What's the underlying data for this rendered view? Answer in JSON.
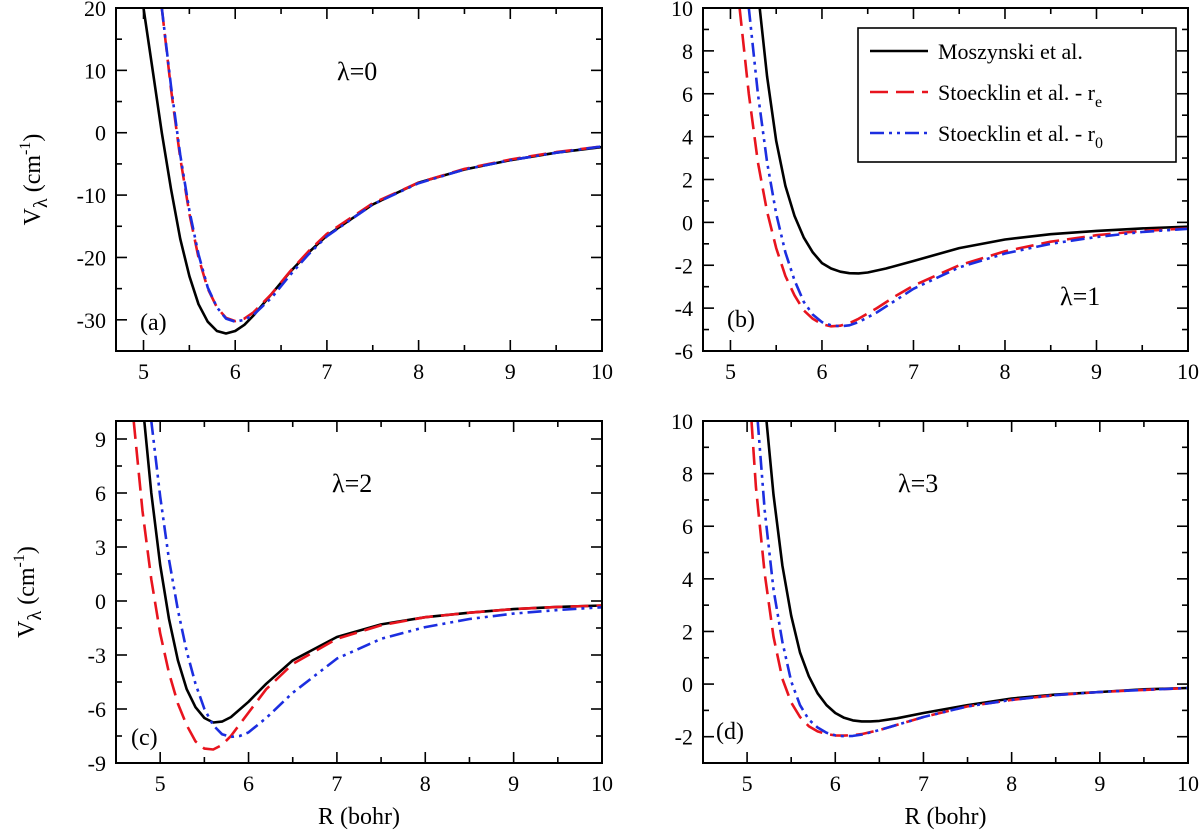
{
  "colors": {
    "moszynski": "#000000",
    "stoecklin_re": "#e8141e",
    "stoecklin_r0": "#1c2ee0"
  },
  "axis_text": {
    "ylabel_main": "V",
    "ylabel_sub": "λ",
    "ylabel_unit": "(cm",
    "ylabel_exp": "-1",
    "ylabel_close": ")",
    "xlabel": "R (bohr)"
  },
  "legend": {
    "placement": "top-right of panel (b)",
    "entries": [
      {
        "key": "moszynski",
        "label": "Moszynski et al.",
        "sub": ""
      },
      {
        "key": "stoecklin_re",
        "label": "Stoecklin et al. - r",
        "sub": "e"
      },
      {
        "key": "stoecklin_r0",
        "label": "Stoecklin et al. - r",
        "sub": "0"
      }
    ]
  },
  "chart_data": [
    {
      "type": "line",
      "panel_label": "(a)",
      "lambda_label": "λ=0",
      "xlim": [
        4.7,
        10
      ],
      "ylim": [
        -35,
        20
      ],
      "xticks": [
        5,
        6,
        7,
        8,
        9,
        10
      ],
      "yticks": [
        -30,
        -20,
        -10,
        0,
        10,
        20
      ],
      "show_xlabel": false,
      "show_ylabel": true,
      "series": [
        {
          "key": "moszynski",
          "x": [
            5.0,
            5.1,
            5.2,
            5.3,
            5.4,
            5.5,
            5.6,
            5.7,
            5.8,
            5.9,
            6.0,
            6.1,
            6.2,
            6.4,
            6.6,
            6.8,
            7.0,
            7.5,
            8.0,
            8.5,
            9.0,
            9.5,
            10.0
          ],
          "y": [
            20,
            10,
            0,
            -9,
            -17,
            -23,
            -27.5,
            -30.3,
            -31.8,
            -32.2,
            -31.8,
            -30.8,
            -29.3,
            -25.8,
            -22.3,
            -19.2,
            -16.5,
            -11.5,
            -8.0,
            -5.9,
            -4.4,
            -3.2,
            -2.3
          ]
        },
        {
          "key": "stoecklin_re",
          "x": [
            5.2,
            5.3,
            5.4,
            5.5,
            5.6,
            5.7,
            5.8,
            5.9,
            6.0,
            6.1,
            6.2,
            6.4,
            6.6,
            6.8,
            7.0,
            7.5,
            8.0,
            8.5,
            9.0,
            9.5,
            10.0
          ],
          "y": [
            20,
            7,
            -4,
            -13,
            -20,
            -25,
            -28,
            -29.7,
            -30.2,
            -29.8,
            -28.8,
            -25.8,
            -22.2,
            -19.0,
            -16.2,
            -11.3,
            -8.0,
            -5.8,
            -4.3,
            -3.1,
            -2.2
          ]
        },
        {
          "key": "stoecklin_r0",
          "x": [
            5.2,
            5.3,
            5.4,
            5.5,
            5.6,
            5.7,
            5.8,
            5.9,
            6.0,
            6.1,
            6.2,
            6.4,
            6.6,
            6.8,
            7.0,
            7.5,
            8.0,
            8.5,
            9.0,
            9.5,
            10.0
          ],
          "y": [
            20,
            7.5,
            -3.5,
            -12.5,
            -19.5,
            -24.8,
            -28,
            -29.8,
            -30.3,
            -30.0,
            -29.2,
            -26.4,
            -22.8,
            -19.5,
            -16.6,
            -11.5,
            -8.1,
            -5.9,
            -4.4,
            -3.2,
            -2.2
          ]
        }
      ]
    },
    {
      "type": "line",
      "panel_label": "(b)",
      "lambda_label": "λ=1",
      "xlim": [
        4.7,
        10
      ],
      "ylim": [
        -6,
        10
      ],
      "xticks": [
        5,
        6,
        7,
        8,
        9,
        10
      ],
      "yticks": [
        -6,
        -4,
        -2,
        0,
        2,
        4,
        6,
        8,
        10
      ],
      "show_xlabel": false,
      "show_ylabel": false,
      "series": [
        {
          "key": "moszynski",
          "x": [
            5.32,
            5.4,
            5.5,
            5.6,
            5.7,
            5.8,
            5.9,
            6.0,
            6.1,
            6.2,
            6.3,
            6.4,
            6.5,
            6.7,
            7.0,
            7.5,
            8.0,
            8.5,
            9.0,
            9.5,
            10.0
          ],
          "y": [
            10,
            6.8,
            3.8,
            1.7,
            0.3,
            -0.7,
            -1.4,
            -1.9,
            -2.15,
            -2.3,
            -2.37,
            -2.38,
            -2.34,
            -2.15,
            -1.8,
            -1.2,
            -0.8,
            -0.55,
            -0.4,
            -0.28,
            -0.2
          ]
        },
        {
          "key": "stoecklin_re",
          "x": [
            5.1,
            5.2,
            5.3,
            5.4,
            5.5,
            5.6,
            5.7,
            5.8,
            5.9,
            6.0,
            6.1,
            6.2,
            6.3,
            6.4,
            6.6,
            6.8,
            7.0,
            7.5,
            8.0,
            8.5,
            9.0,
            9.5,
            10.0
          ],
          "y": [
            10,
            6.0,
            2.8,
            0.5,
            -1.2,
            -2.5,
            -3.4,
            -4.1,
            -4.5,
            -4.75,
            -4.85,
            -4.82,
            -4.7,
            -4.5,
            -4.0,
            -3.45,
            -2.95,
            -2.0,
            -1.35,
            -0.9,
            -0.6,
            -0.4,
            -0.28
          ]
        },
        {
          "key": "stoecklin_r0",
          "x": [
            5.2,
            5.3,
            5.4,
            5.5,
            5.6,
            5.7,
            5.8,
            5.9,
            6.0,
            6.1,
            6.2,
            6.3,
            6.4,
            6.6,
            6.8,
            7.0,
            7.5,
            8.0,
            8.5,
            9.0,
            9.5,
            10.0
          ],
          "y": [
            10,
            6.0,
            2.8,
            0.4,
            -1.4,
            -2.7,
            -3.7,
            -4.3,
            -4.65,
            -4.8,
            -4.85,
            -4.8,
            -4.65,
            -4.2,
            -3.65,
            -3.1,
            -2.1,
            -1.45,
            -1.0,
            -0.68,
            -0.45,
            -0.3
          ]
        }
      ]
    },
    {
      "type": "line",
      "panel_label": "(c)",
      "lambda_label": "λ=2",
      "xlim": [
        4.5,
        10
      ],
      "ylim": [
        -9,
        10
      ],
      "xticks": [
        5,
        6,
        7,
        8,
        9,
        10
      ],
      "yticks": [
        -9,
        -6,
        -3,
        0,
        3,
        6,
        9
      ],
      "show_xlabel": true,
      "show_ylabel": true,
      "series": [
        {
          "key": "moszynski",
          "x": [
            4.82,
            4.9,
            5.0,
            5.1,
            5.2,
            5.3,
            5.4,
            5.5,
            5.6,
            5.7,
            5.8,
            6.0,
            6.2,
            6.5,
            7.0,
            7.5,
            8.0,
            8.5,
            9.0,
            9.5,
            10.0
          ],
          "y": [
            10,
            6.0,
            2.0,
            -1.0,
            -3.3,
            -4.9,
            -5.9,
            -6.5,
            -6.75,
            -6.7,
            -6.45,
            -5.6,
            -4.6,
            -3.3,
            -2.0,
            -1.3,
            -0.9,
            -0.65,
            -0.45,
            -0.33,
            -0.25
          ]
        },
        {
          "key": "stoecklin_re",
          "x": [
            4.7,
            4.8,
            4.9,
            5.0,
            5.1,
            5.2,
            5.3,
            5.4,
            5.5,
            5.6,
            5.7,
            5.8,
            6.0,
            6.2,
            6.5,
            7.0,
            7.5,
            8.0,
            8.5,
            9.0,
            9.5,
            10.0
          ],
          "y": [
            10,
            5.0,
            1.2,
            -1.8,
            -4.0,
            -5.7,
            -6.9,
            -7.8,
            -8.2,
            -8.25,
            -8.0,
            -7.5,
            -6.2,
            -4.9,
            -3.5,
            -2.1,
            -1.35,
            -0.9,
            -0.65,
            -0.45,
            -0.33,
            -0.25
          ]
        },
        {
          "key": "stoecklin_r0",
          "x": [
            4.9,
            5.0,
            5.1,
            5.2,
            5.3,
            5.4,
            5.5,
            5.6,
            5.7,
            5.8,
            5.9,
            6.0,
            6.2,
            6.5,
            7.0,
            7.5,
            8.0,
            8.5,
            9.0,
            9.5,
            10.0
          ],
          "y": [
            10,
            5.8,
            2.3,
            -0.5,
            -2.8,
            -4.6,
            -6.0,
            -6.9,
            -7.4,
            -7.55,
            -7.5,
            -7.3,
            -6.5,
            -5.1,
            -3.2,
            -2.1,
            -1.45,
            -1.0,
            -0.7,
            -0.5,
            -0.35
          ]
        }
      ]
    },
    {
      "type": "line",
      "panel_label": "(d)",
      "lambda_label": "λ=3",
      "xlim": [
        4.5,
        10
      ],
      "ylim": [
        -3,
        10
      ],
      "xticks": [
        5,
        6,
        7,
        8,
        9,
        10
      ],
      "yticks": [
        -2,
        0,
        2,
        4,
        6,
        8,
        10
      ],
      "show_xlabel": true,
      "show_ylabel": false,
      "series": [
        {
          "key": "moszynski",
          "x": [
            5.22,
            5.3,
            5.4,
            5.5,
            5.6,
            5.7,
            5.8,
            5.9,
            6.0,
            6.1,
            6.2,
            6.3,
            6.4,
            6.5,
            6.7,
            7.0,
            7.5,
            8.0,
            8.5,
            9.0,
            9.5,
            10.0
          ],
          "y": [
            10,
            7.2,
            4.5,
            2.6,
            1.2,
            0.3,
            -0.35,
            -0.8,
            -1.1,
            -1.28,
            -1.38,
            -1.42,
            -1.42,
            -1.4,
            -1.3,
            -1.1,
            -0.8,
            -0.55,
            -0.4,
            -0.3,
            -0.2,
            -0.15
          ]
        },
        {
          "key": "stoecklin_re",
          "x": [
            5.05,
            5.1,
            5.2,
            5.3,
            5.4,
            5.5,
            5.6,
            5.7,
            5.8,
            5.9,
            6.0,
            6.1,
            6.2,
            6.3,
            6.5,
            7.0,
            7.5,
            8.0,
            8.5,
            9.0,
            9.5,
            10.0
          ],
          "y": [
            10,
            7.5,
            4.2,
            1.8,
            0.2,
            -0.7,
            -1.25,
            -1.6,
            -1.8,
            -1.9,
            -1.95,
            -1.96,
            -1.94,
            -1.9,
            -1.75,
            -1.25,
            -0.85,
            -0.6,
            -0.42,
            -0.3,
            -0.22,
            -0.15
          ]
        },
        {
          "key": "stoecklin_r0",
          "x": [
            5.12,
            5.2,
            5.3,
            5.4,
            5.5,
            5.6,
            5.7,
            5.8,
            5.9,
            6.0,
            6.1,
            6.2,
            6.3,
            6.5,
            7.0,
            7.5,
            8.0,
            8.5,
            9.0,
            9.5,
            10.0
          ],
          "y": [
            10,
            6.6,
            3.6,
            1.6,
            0.1,
            -0.8,
            -1.35,
            -1.65,
            -1.85,
            -1.95,
            -1.98,
            -1.97,
            -1.92,
            -1.75,
            -1.25,
            -0.85,
            -0.6,
            -0.42,
            -0.3,
            -0.22,
            -0.15
          ]
        }
      ]
    }
  ]
}
